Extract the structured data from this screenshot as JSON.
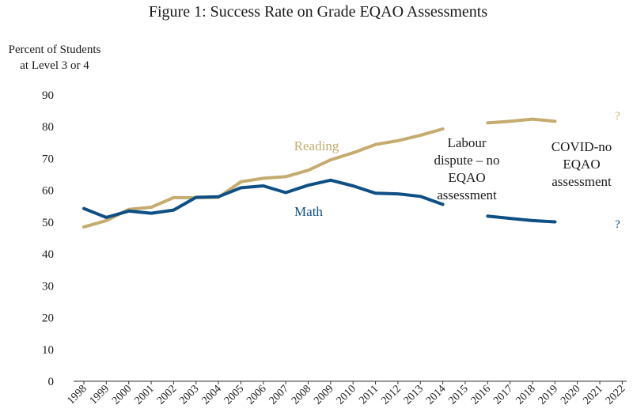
{
  "chart_data": {
    "type": "line",
    "title": "Figure 1: Success Rate on Grade EQAO Assessments",
    "ylabel_lines": [
      "Percent of Students",
      "at Level 3 or 4"
    ],
    "xlabel": "",
    "ylim": [
      0,
      90
    ],
    "yticks": [
      0,
      10,
      20,
      30,
      40,
      50,
      60,
      70,
      80,
      90
    ],
    "categories": [
      "1998",
      "1999",
      "2000",
      "2001",
      "2002",
      "2003",
      "2004",
      "2005",
      "2006",
      "2007",
      "2008",
      "2009",
      "2010",
      "2011",
      "2012",
      "2013",
      "2014",
      "2015",
      "2016",
      "2017",
      "2018",
      "2019",
      "2020",
      "2021",
      "2022"
    ],
    "grid": false,
    "series": [
      {
        "name": "Reading",
        "color": "#c4ab6e",
        "values": [
          48.5,
          50.5,
          54,
          54.7,
          57.7,
          57.7,
          57.8,
          62.7,
          63.8,
          64.3,
          66.3,
          69.6,
          71.8,
          74.4,
          75.6,
          77.3,
          79.3,
          null,
          81.2,
          81.7,
          82.4,
          81.7,
          null,
          null,
          null
        ]
      },
      {
        "name": "Math",
        "color": "#0e4f85",
        "values": [
          54.3,
          51.5,
          53.5,
          52.8,
          53.8,
          57.8,
          58,
          60.8,
          61.4,
          59.3,
          61.6,
          63.2,
          61.4,
          59.1,
          58.9,
          58.1,
          55.6,
          null,
          51.9,
          51.2,
          50.5,
          50.1,
          null,
          null,
          null
        ]
      }
    ],
    "markers": [
      {
        "text": "?",
        "series": "Reading",
        "category": "2022",
        "value": 83.5
      },
      {
        "text": "?",
        "series": "Math",
        "category": "2022",
        "value": 49.5
      }
    ],
    "annotations": {
      "labour_lines": [
        "Labour",
        "dispute – no",
        "EQAO",
        "assessment"
      ],
      "covid_lines": [
        "COVID-no",
        "EQAO",
        "assessment"
      ]
    }
  }
}
